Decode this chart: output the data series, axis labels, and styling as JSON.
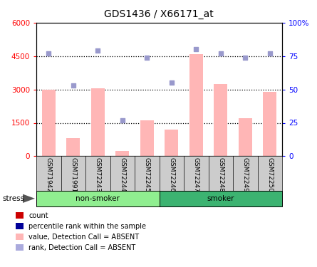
{
  "title": "GDS1436 / X66171_at",
  "samples": [
    "GSM71942",
    "GSM71991",
    "GSM72243",
    "GSM72244",
    "GSM72245",
    "GSM72246",
    "GSM72247",
    "GSM72248",
    "GSM72249",
    "GSM72250"
  ],
  "bar_values": [
    3000,
    800,
    3050,
    250,
    1600,
    1200,
    4600,
    3250,
    1700,
    2900
  ],
  "rank_values": [
    77,
    53,
    79,
    27,
    74,
    55,
    80,
    77,
    74,
    77
  ],
  "ylim_left": [
    0,
    6000
  ],
  "ylim_right": [
    0,
    100
  ],
  "yticks_left": [
    0,
    1500,
    3000,
    4500,
    6000
  ],
  "ytick_labels_left": [
    "0",
    "1500",
    "3000",
    "4500",
    "6000"
  ],
  "yticks_right": [
    0,
    25,
    50,
    75,
    100
  ],
  "ytick_labels_right": [
    "0",
    "25",
    "50",
    "75",
    "100%"
  ],
  "bar_color": "#FFB6B6",
  "rank_color": "#9999CC",
  "dotted_grid_values": [
    1500,
    3000,
    4500
  ],
  "sample_bg_color": "#CCCCCC",
  "ns_color": "#90EE90",
  "smoker_color": "#3CB371",
  "legend_items": [
    {
      "label": "count",
      "color": "#CC0000"
    },
    {
      "label": "percentile rank within the sample",
      "color": "#000099"
    },
    {
      "label": "value, Detection Call = ABSENT",
      "color": "#FFB6B6"
    },
    {
      "label": "rank, Detection Call = ABSENT",
      "color": "#AAAADD"
    }
  ]
}
